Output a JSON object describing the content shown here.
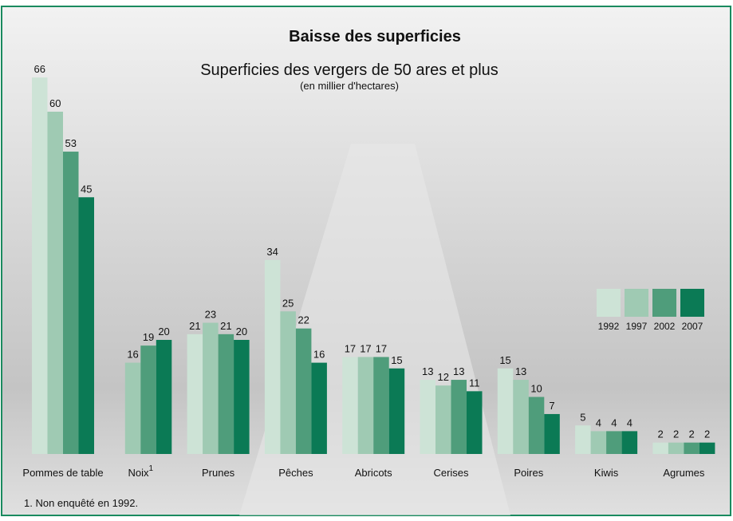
{
  "chart_data": {
    "type": "bar",
    "title": "Baisse des superficies",
    "subtitle": "Superficies des vergers de 50 ares et plus",
    "units": "(en millier d'hectares)",
    "categories": [
      "Pommes de table",
      "Noix",
      "Prunes",
      "Pêches",
      "Abricots",
      "Cerises",
      "Poires",
      "Kiwis",
      "Agrumes"
    ],
    "category_notes": [
      null,
      "1",
      null,
      null,
      null,
      null,
      null,
      null,
      null
    ],
    "series": [
      {
        "name": "1992",
        "color": "#cde3d6",
        "values": [
          66,
          null,
          21,
          34,
          17,
          13,
          15,
          5,
          2
        ]
      },
      {
        "name": "1997",
        "color": "#9fcab3",
        "values": [
          60,
          16,
          23,
          25,
          17,
          12,
          13,
          4,
          2
        ]
      },
      {
        "name": "2002",
        "color": "#4f9d7b",
        "values": [
          53,
          19,
          21,
          22,
          17,
          13,
          10,
          4,
          2
        ]
      },
      {
        "name": "2007",
        "color": "#0b7a55",
        "values": [
          45,
          20,
          20,
          16,
          15,
          11,
          7,
          4,
          2
        ]
      }
    ],
    "footnote": "1. Non enquêté en 1992."
  }
}
